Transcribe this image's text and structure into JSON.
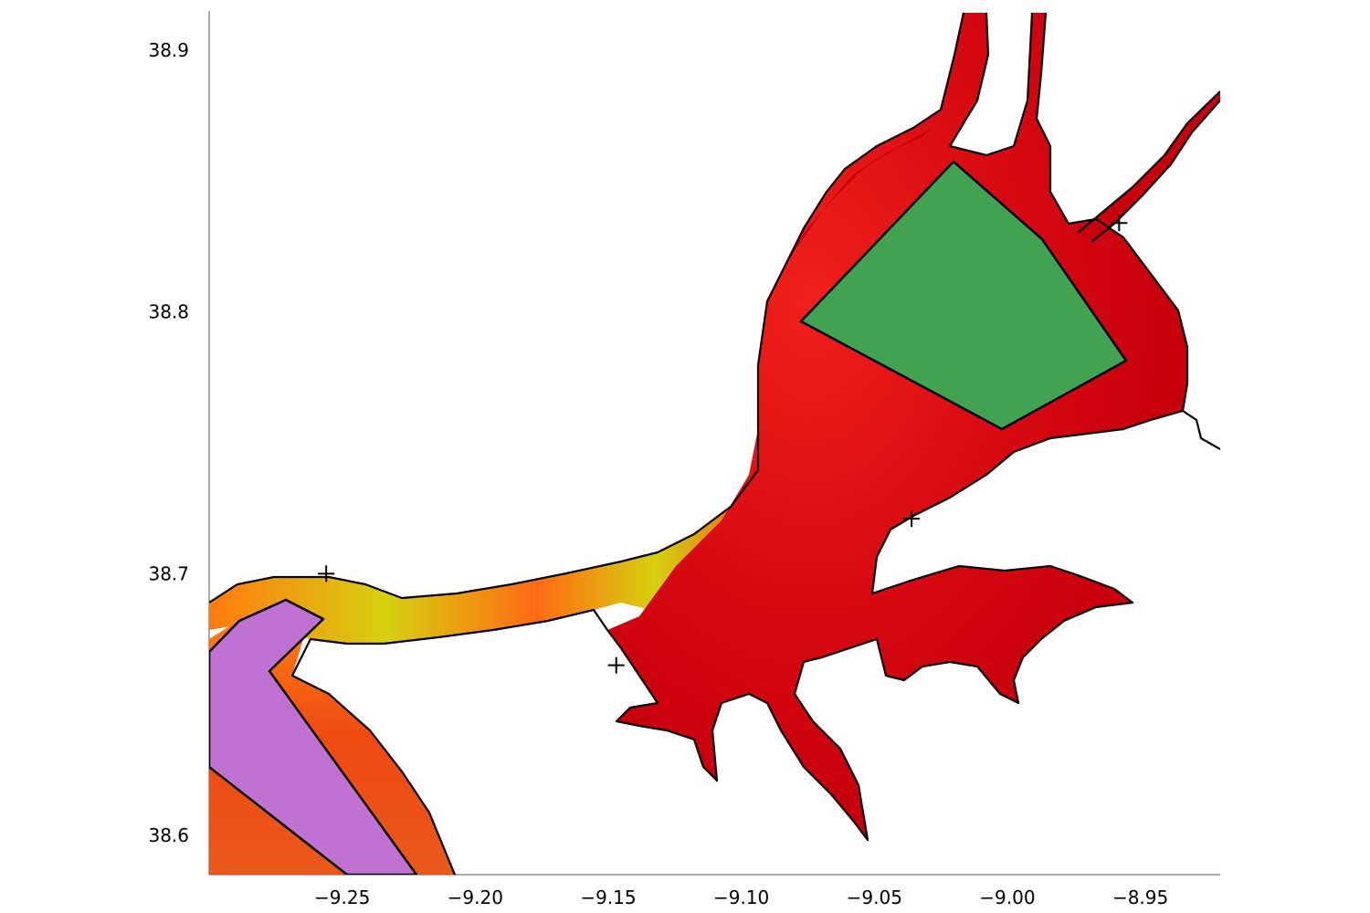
{
  "map": {
    "x_axis": {
      "min": -9.3,
      "max": -8.92,
      "ticks": [
        "−9.25",
        "−9.20",
        "−9.15",
        "−9.10",
        "−9.05",
        "−9.00",
        "−8.95"
      ],
      "tick_values": [
        -9.25,
        -9.2,
        -9.15,
        -9.1,
        -9.05,
        -9.0,
        -8.95
      ]
    },
    "y_axis": {
      "min": 38.585,
      "max": 38.915,
      "ticks": [
        "38.6",
        "38.7",
        "38.8",
        "38.9"
      ],
      "tick_values": [
        38.6,
        38.7,
        38.8,
        38.9
      ]
    },
    "colors": {
      "estuary_base": "#c8000e",
      "estuary_mid": "#f0201a",
      "estuary_high": "#ff7a10",
      "estuary_peak": "#d7d010",
      "zone_north": "#41a34f",
      "zone_southwest": "#c072d2"
    },
    "markers": [
      {
        "lon": -9.256,
        "lat": 38.7
      },
      {
        "lon": -9.036,
        "lat": 38.721
      },
      {
        "lon": -9.147,
        "lat": 38.665
      },
      {
        "lon": -8.958,
        "lat": 38.834
      }
    ]
  }
}
